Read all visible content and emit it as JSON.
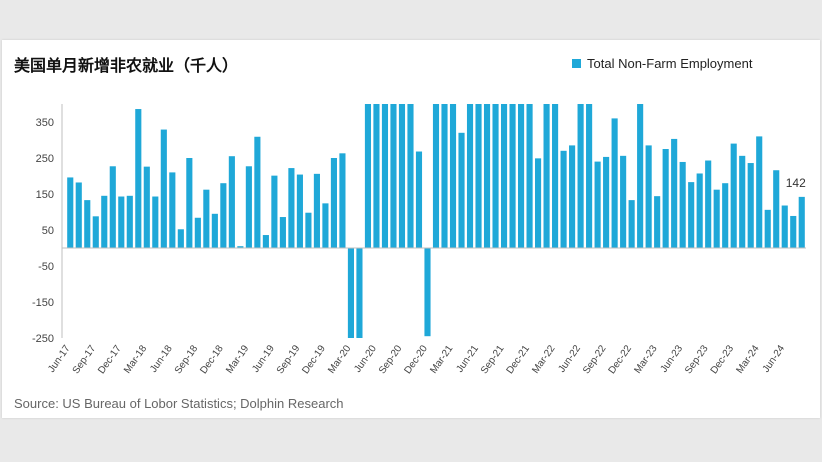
{
  "chart_data": {
    "type": "bar",
    "title": "美国单月新增非农就业（千人）",
    "legend": {
      "label": "Total Non-Farm Employment",
      "position": "top-right"
    },
    "source": "Source: US Bureau of Lobor Statistics; Dolphin Research",
    "colors": {
      "bar": "#1fa8d8",
      "axis": "#bfbfbf"
    },
    "ylim": [
      -250,
      400
    ],
    "yticks": [
      -250,
      -150,
      -50,
      50,
      150,
      250,
      350
    ],
    "grid": false,
    "xtick_labels": [
      "Jun-17",
      "Sep-17",
      "Dec-17",
      "Mar-18",
      "Jun-18",
      "Sep-18",
      "Dec-18",
      "Mar-19",
      "Jun-19",
      "Sep-19",
      "Dec-19",
      "Mar-20",
      "Jun-20",
      "Sep-20",
      "Dec-20",
      "Mar-21",
      "Jun-21",
      "Sep-21",
      "Dec-21",
      "Mar-22",
      "Jun-22",
      "Sep-22",
      "Dec-22",
      "Mar-23",
      "Jun-23",
      "Sep-23",
      "Dec-23",
      "Mar-24",
      "Jun-24"
    ],
    "values": [
      196,
      182,
      133,
      88,
      145,
      227,
      143,
      145,
      386,
      226,
      143,
      329,
      210,
      52,
      250,
      84,
      162,
      95,
      180,
      255,
      5,
      227,
      309,
      36,
      201,
      86,
      222,
      204,
      98,
      206,
      124,
      250,
      263,
      -250,
      -250,
      400,
      400,
      400,
      400,
      400,
      400,
      268,
      -245,
      400,
      400,
      400,
      320,
      400,
      400,
      400,
      400,
      400,
      400,
      400,
      400,
      249,
      400,
      400,
      270,
      285,
      400,
      400,
      240,
      253,
      360,
      256,
      133,
      400,
      285,
      144,
      275,
      303,
      239,
      183,
      207,
      243,
      162,
      180,
      290,
      256,
      236,
      310,
      106,
      216,
      118,
      89,
      142
    ],
    "last_label": "142"
  }
}
